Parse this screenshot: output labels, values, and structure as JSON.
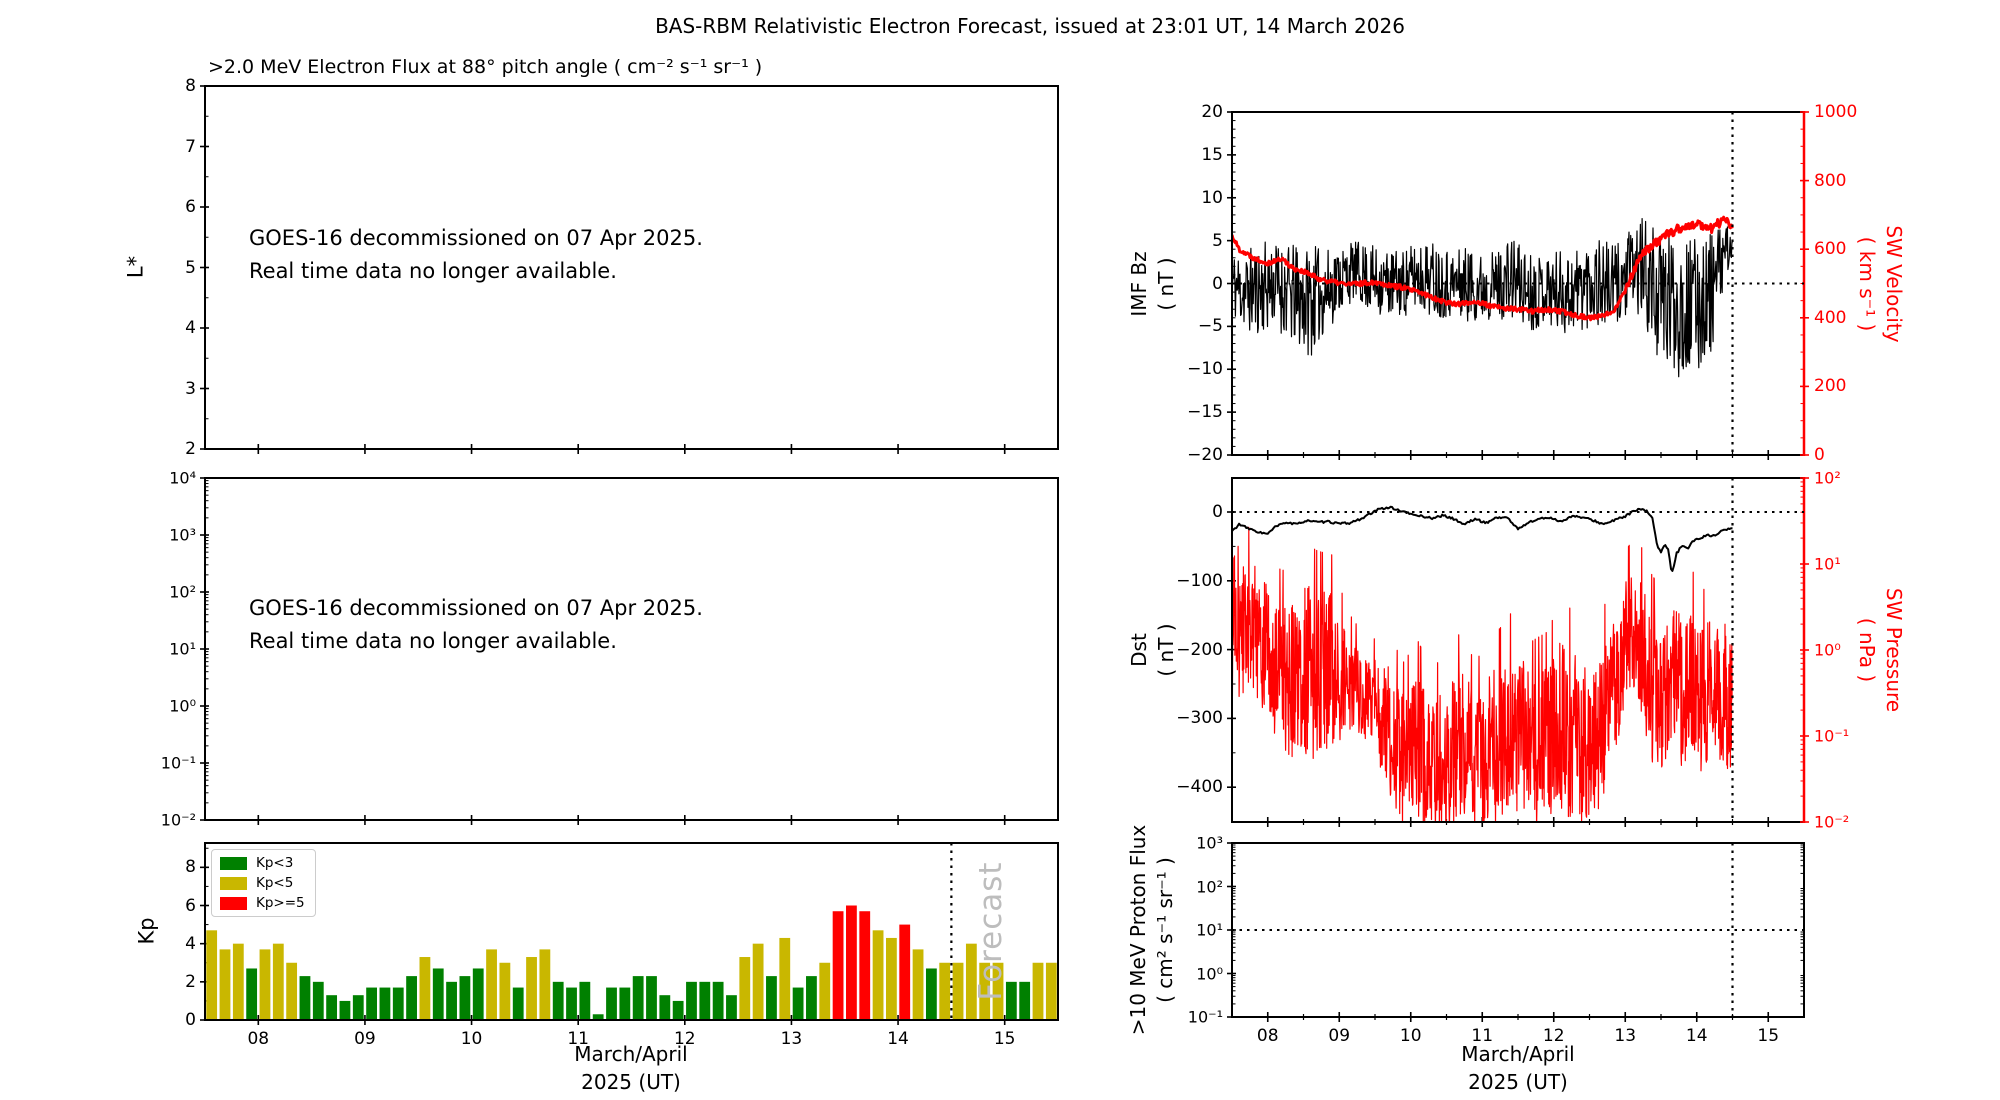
{
  "title": "BAS-RBM Relativistic Electron Forecast, issued at 23:01 UT, 14 March 2026",
  "colors": {
    "kp_green": "#008000",
    "kp_yellow": "#c9b700",
    "kp_red": "#ff0000",
    "series_black": "#000000",
    "series_red": "#ff0000",
    "forecast_gray": "#bdbdbd",
    "legend_border": "#cccccc"
  },
  "x_axis": {
    "tick_labels": [
      "08",
      "09",
      "10",
      "11",
      "12",
      "13",
      "14",
      "15"
    ],
    "label_line1": "March/April",
    "label_line2": "2025 (UT)",
    "range_days": [
      7.5,
      15.5
    ],
    "forecast_start_day": 14.5
  },
  "panels": {
    "electron_flux": {
      "title": ">2.0 MeV Electron Flux at 88° pitch angle ( cm⁻² s⁻¹ sr⁻¹ )",
      "ylabel": "L*",
      "ytick_labels": [
        "8",
        "7",
        "6",
        "5",
        "4",
        "3",
        "2"
      ],
      "notice_line1": "GOES-16 decommissioned on 07 Apr 2025.",
      "notice_line2": "Real time data no longer available."
    },
    "electron_flux_log": {
      "ytick_labels": [
        "10⁴",
        "10³",
        "10²",
        "10¹",
        "10⁰",
        "10⁻¹",
        "10⁻²"
      ],
      "notice_line1": "GOES-16 decommissioned on 07 Apr 2025.",
      "notice_line2": "Real time data no longer available."
    },
    "kp": {
      "ylabel": "Kp",
      "ytick_labels": [
        "8",
        "6",
        "4",
        "2",
        "0"
      ],
      "legend": {
        "items": [
          {
            "label": "Kp<3",
            "color_key": "kp_green"
          },
          {
            "label": "Kp<5",
            "color_key": "kp_yellow"
          },
          {
            "label": "Kp>=5",
            "color_key": "kp_red"
          }
        ]
      },
      "forecast_watermark": "Forecast"
    },
    "imf_sw": {
      "ylabel_line1": "IMF Bz",
      "ylabel_line2": "( nT )",
      "ytick_labels": [
        "20",
        "15",
        "10",
        "5",
        "0",
        "−5",
        "−10",
        "−15",
        "−20"
      ],
      "y2label_line1": "SW Velocity",
      "y2label_line2": "( km s⁻¹ )",
      "y2tick_labels": [
        "1000",
        "800",
        "600",
        "400",
        "200",
        "0"
      ]
    },
    "dst_pressure": {
      "ylabel_line1": "Dst",
      "ylabel_line2": "( nT )",
      "ytick_labels": [
        "0",
        "−100",
        "−200",
        "−300",
        "−400"
      ],
      "y2label_line1": "SW Pressure",
      "y2label_line2": "( nPa )",
      "y2tick_labels": [
        "10²",
        "10¹",
        "10⁰",
        "10⁻¹",
        "10⁻²"
      ]
    },
    "proton": {
      "ylabel_line1": ">10 MeV Proton Flux",
      "ylabel_line2": "( cm² s⁻¹ sr⁻¹ )",
      "ytick_labels": [
        "10³",
        "10²",
        "10¹",
        "10⁰",
        "10⁻¹"
      ]
    }
  },
  "chart_data": [
    {
      "id": "electron_flux_L",
      "type": "line",
      "title": ">2.0 MeV Electron Flux at 88° pitch angle ( cm⁻² s⁻¹ sr⁻¹ )",
      "ylabel": "L*",
      "ylim": [
        2,
        8
      ],
      "xlim_days": [
        7.5,
        15.5
      ],
      "series": [],
      "annotation": "GOES-16 decommissioned on 07 Apr 2025. Real time data no longer available."
    },
    {
      "id": "electron_flux_log",
      "type": "line",
      "ylim_log10": [
        -2,
        4
      ],
      "xlim_days": [
        7.5,
        15.5
      ],
      "series": [],
      "annotation": "GOES-16 decommissioned on 07 Apr 2025. Real time data no longer available."
    },
    {
      "id": "kp",
      "type": "bar",
      "ylabel": "Kp",
      "ylim": [
        0,
        9.3
      ],
      "xlim_days": [
        7.5,
        15.5
      ],
      "bar_start_day": 7.5,
      "bar_step_days": 0.125,
      "values": [
        4.7,
        3.7,
        4,
        2.7,
        3.7,
        4,
        3,
        2.3,
        2,
        1.3,
        1,
        1.3,
        1.7,
        1.7,
        1.7,
        2.3,
        3.3,
        2.7,
        2,
        2.3,
        2.7,
        3.7,
        3,
        1.7,
        3.3,
        3.7,
        2,
        1.7,
        2,
        0.3,
        1.7,
        1.7,
        2.3,
        2.3,
        1.3,
        1,
        2,
        2,
        2,
        1.3,
        3.3,
        4,
        2.3,
        4.3,
        1.7,
        2.3,
        3,
        5.7,
        6,
        5.7,
        4.7,
        4.3,
        5,
        3.7,
        2.7,
        3,
        3,
        4,
        3,
        3,
        2,
        2,
        3,
        3
      ],
      "color_rule": {
        "green": "Kp<3",
        "yellow": "3<=Kp<5",
        "red": "Kp>=5"
      },
      "forecast_start_day": 14.5
    },
    {
      "id": "imf_sw",
      "type": "line",
      "ylim": [
        -20,
        20
      ],
      "y2lim": [
        0,
        1000
      ],
      "xlim_days": [
        7.5,
        15.5
      ],
      "data_end_day": 14.5,
      "hline_left_axis": 0,
      "vline_day": 14.5,
      "series": [
        {
          "name": "IMF Bz",
          "axis": "left",
          "color_key": "series_black",
          "mean_amp_keypoints": [
            [
              7.5,
              0,
              4
            ],
            [
              7.7,
              -1,
              5
            ],
            [
              7.9,
              -0.5,
              5.5
            ],
            [
              8.1,
              0,
              5
            ],
            [
              8.35,
              -1.5,
              6
            ],
            [
              8.6,
              -2,
              6.5
            ],
            [
              8.8,
              -1,
              5
            ],
            [
              9,
              0.5,
              4
            ],
            [
              9.2,
              1.5,
              3.5
            ],
            [
              9.45,
              0.5,
              4
            ],
            [
              9.7,
              0,
              4
            ],
            [
              9.9,
              0,
              4
            ],
            [
              10.1,
              1,
              4
            ],
            [
              10.35,
              0.5,
              4.5
            ],
            [
              10.6,
              0,
              4
            ],
            [
              10.8,
              0,
              4.5
            ],
            [
              11,
              -0.5,
              4
            ],
            [
              11.2,
              0,
              4
            ],
            [
              11.45,
              0.5,
              5
            ],
            [
              11.7,
              -1,
              4.5
            ],
            [
              11.9,
              -0.5,
              4
            ],
            [
              12.1,
              -1,
              5
            ],
            [
              12.3,
              -0.8,
              5
            ],
            [
              12.55,
              0.5,
              5.5
            ],
            [
              12.8,
              -0.5,
              5
            ],
            [
              13,
              0.5,
              5
            ],
            [
              13.15,
              2,
              5
            ],
            [
              13.3,
              1,
              7
            ],
            [
              13.45,
              -1.5,
              7
            ],
            [
              13.6,
              -2,
              8
            ],
            [
              13.75,
              -2.5,
              8.5
            ],
            [
              13.9,
              -3,
              8
            ],
            [
              14.05,
              -2,
              8
            ],
            [
              14.2,
              -1,
              7
            ],
            [
              14.35,
              2.5,
              4
            ],
            [
              14.45,
              4.5,
              2.5
            ],
            [
              14.5,
              4,
              2
            ]
          ]
        },
        {
          "name": "SW Velocity",
          "axis": "right",
          "color_key": "series_red",
          "keypoints": [
            [
              7.5,
              640
            ],
            [
              7.6,
              600
            ],
            [
              7.8,
              575
            ],
            [
              8,
              560
            ],
            [
              8.2,
              572
            ],
            [
              8.35,
              545
            ],
            [
              8.5,
              535
            ],
            [
              8.7,
              515
            ],
            [
              8.9,
              505
            ],
            [
              9.1,
              498
            ],
            [
              9.3,
              500
            ],
            [
              9.5,
              505
            ],
            [
              9.7,
              495
            ],
            [
              9.9,
              488
            ],
            [
              10.1,
              475
            ],
            [
              10.3,
              460
            ],
            [
              10.5,
              445
            ],
            [
              10.7,
              440
            ],
            [
              10.9,
              448
            ],
            [
              11.1,
              435
            ],
            [
              11.3,
              428
            ],
            [
              11.5,
              425
            ],
            [
              11.7,
              420
            ],
            [
              11.9,
              424
            ],
            [
              12.1,
              418
            ],
            [
              12.3,
              408
            ],
            [
              12.5,
              400
            ],
            [
              12.7,
              405
            ],
            [
              12.85,
              425
            ],
            [
              13,
              480
            ],
            [
              13.1,
              530
            ],
            [
              13.2,
              570
            ],
            [
              13.3,
              600
            ],
            [
              13.45,
              620
            ],
            [
              13.6,
              645
            ],
            [
              13.75,
              660
            ],
            [
              13.9,
              668
            ],
            [
              14.05,
              672
            ],
            [
              14.2,
              660
            ],
            [
              14.3,
              675
            ],
            [
              14.4,
              685
            ],
            [
              14.5,
              665
            ]
          ]
        }
      ]
    },
    {
      "id": "dst_pressure",
      "type": "line",
      "ylim": [
        50,
        -450
      ],
      "y2lim_log10": [
        -2,
        2
      ],
      "xlim_days": [
        7.5,
        15.5
      ],
      "data_end_day": 14.5,
      "hline_left_axis": 0,
      "vline_day": 14.5,
      "series": [
        {
          "name": "Dst",
          "axis": "left",
          "color_key": "series_black",
          "keypoints": [
            [
              7.5,
              -28
            ],
            [
              7.6,
              -18
            ],
            [
              7.75,
              -25
            ],
            [
              7.9,
              -30
            ],
            [
              8,
              -32
            ],
            [
              8.1,
              -22
            ],
            [
              8.25,
              -15
            ],
            [
              8.4,
              -18
            ],
            [
              8.55,
              -12
            ],
            [
              8.7,
              -15
            ],
            [
              8.85,
              -14
            ],
            [
              9,
              -17
            ],
            [
              9.15,
              -16
            ],
            [
              9.3,
              -10
            ],
            [
              9.45,
              -2
            ],
            [
              9.55,
              4
            ],
            [
              9.7,
              7
            ],
            [
              9.85,
              2
            ],
            [
              10,
              -3
            ],
            [
              10.15,
              -6
            ],
            [
              10.3,
              -9
            ],
            [
              10.45,
              -5
            ],
            [
              10.6,
              -10
            ],
            [
              10.75,
              -18
            ],
            [
              10.9,
              -10
            ],
            [
              11.05,
              -16
            ],
            [
              11.2,
              -8
            ],
            [
              11.35,
              -8
            ],
            [
              11.5,
              -25
            ],
            [
              11.65,
              -15
            ],
            [
              11.8,
              -10
            ],
            [
              11.95,
              -8
            ],
            [
              12.1,
              -14
            ],
            [
              12.25,
              -6
            ],
            [
              12.4,
              -8
            ],
            [
              12.55,
              -12
            ],
            [
              12.7,
              -18
            ],
            [
              12.85,
              -12
            ],
            [
              13,
              -6
            ],
            [
              13.1,
              0
            ],
            [
              13.2,
              4
            ],
            [
              13.3,
              1
            ],
            [
              13.38,
              -8
            ],
            [
              13.45,
              -50
            ],
            [
              13.5,
              -58
            ],
            [
              13.55,
              -48
            ],
            [
              13.6,
              -55
            ],
            [
              13.65,
              -90
            ],
            [
              13.72,
              -60
            ],
            [
              13.8,
              -48
            ],
            [
              13.88,
              -52
            ],
            [
              13.95,
              -42
            ],
            [
              14.05,
              -38
            ],
            [
              14.15,
              -33
            ],
            [
              14.25,
              -35
            ],
            [
              14.35,
              -27
            ],
            [
              14.45,
              -24
            ],
            [
              14.5,
              -25
            ]
          ]
        },
        {
          "name": "SW Pressure",
          "axis": "right",
          "color_key": "series_red",
          "log10_center_spread_keypoints": [
            [
              7.5,
              0,
              0.7
            ],
            [
              7.7,
              0.3,
              0.8
            ],
            [
              7.9,
              0.1,
              0.8
            ],
            [
              8.1,
              -0.2,
              0.8
            ],
            [
              8.3,
              -0.4,
              0.9
            ],
            [
              8.5,
              -0.2,
              1
            ],
            [
              8.7,
              -0.3,
              1
            ],
            [
              8.9,
              -0.2,
              0.9
            ],
            [
              9.1,
              -0.4,
              0.6
            ],
            [
              9.3,
              -0.5,
              0.5
            ],
            [
              9.5,
              -0.6,
              0.5
            ],
            [
              9.7,
              -1,
              0.8
            ],
            [
              9.9,
              -1.3,
              0.8
            ],
            [
              10.1,
              -1.2,
              0.9
            ],
            [
              10.3,
              -1.4,
              0.8
            ],
            [
              10.5,
              -1.3,
              0.9
            ],
            [
              10.7,
              -1.1,
              0.9
            ],
            [
              10.9,
              -1.3,
              0.8
            ],
            [
              11.1,
              -1.2,
              0.9
            ],
            [
              11.3,
              -1,
              0.9
            ],
            [
              11.5,
              -0.9,
              1
            ],
            [
              11.7,
              -1.2,
              0.9
            ],
            [
              11.9,
              -1.1,
              0.9
            ],
            [
              12.1,
              -0.9,
              1
            ],
            [
              12.3,
              -1,
              1
            ],
            [
              12.5,
              -1.2,
              0.9
            ],
            [
              12.7,
              -0.8,
              0.9
            ],
            [
              12.9,
              -0.3,
              0.8
            ],
            [
              13.05,
              0.2,
              0.7
            ],
            [
              13.2,
              0.1,
              0.8
            ],
            [
              13.35,
              -0.4,
              0.9
            ],
            [
              13.5,
              -0.6,
              0.9
            ],
            [
              13.65,
              -0.3,
              0.8
            ],
            [
              13.8,
              -0.5,
              0.9
            ],
            [
              13.95,
              -0.4,
              0.9
            ],
            [
              14.1,
              -0.6,
              0.9
            ],
            [
              14.25,
              -0.4,
              0.8
            ],
            [
              14.4,
              -0.5,
              0.9
            ],
            [
              14.5,
              -0.6,
              0.8
            ]
          ]
        }
      ]
    },
    {
      "id": "proton_flux",
      "type": "line",
      "ylim_log10": [
        -1,
        3
      ],
      "xlim_days": [
        7.5,
        15.5
      ],
      "series": [],
      "hline_log10": 1,
      "vline_day": 14.5
    }
  ]
}
